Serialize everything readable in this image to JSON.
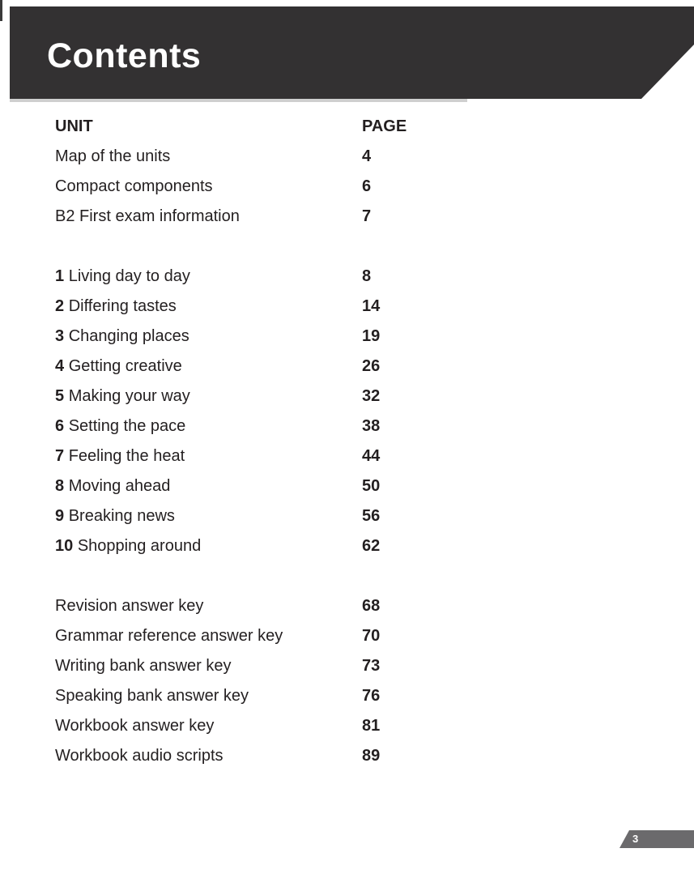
{
  "header": {
    "title": "Contents"
  },
  "toc": {
    "headers": {
      "unit": "UNIT",
      "page": "PAGE"
    },
    "front_matter": [
      {
        "label": "Map of the units",
        "page": "4"
      },
      {
        "label": "Compact components",
        "page": "6"
      },
      {
        "label": "B2 First exam information",
        "page": "7"
      }
    ],
    "units": [
      {
        "number": "1",
        "label": "Living day to day",
        "page": "8"
      },
      {
        "number": "2",
        "label": "Differing tastes",
        "page": "14"
      },
      {
        "number": "3",
        "label": "Changing places",
        "page": "19"
      },
      {
        "number": "4",
        "label": "Getting creative",
        "page": "26"
      },
      {
        "number": "5",
        "label": "Making your way",
        "page": "32"
      },
      {
        "number": "6",
        "label": "Setting the pace",
        "page": "38"
      },
      {
        "number": "7",
        "label": "Feeling the heat",
        "page": "44"
      },
      {
        "number": "8",
        "label": "Moving ahead",
        "page": "50"
      },
      {
        "number": "9",
        "label": "Breaking news",
        "page": "56"
      },
      {
        "number": "10",
        "label": "Shopping around",
        "page": "62"
      }
    ],
    "back_matter": [
      {
        "label": "Revision answer key",
        "page": "68"
      },
      {
        "label": "Grammar reference answer key",
        "page": "70"
      },
      {
        "label": "Writing bank answer key",
        "page": "73"
      },
      {
        "label": "Speaking bank answer key",
        "page": "76"
      },
      {
        "label": "Workbook answer key",
        "page": "81"
      },
      {
        "label": "Workbook audio scripts",
        "page": "89"
      }
    ]
  },
  "footer": {
    "page_number": "3"
  },
  "colors": {
    "banner": "#333132",
    "title_text": "#ffffff",
    "body_text": "#231f20",
    "footer_tab": "#6b6a6c",
    "banner_shadow": "#cfcfcf"
  }
}
